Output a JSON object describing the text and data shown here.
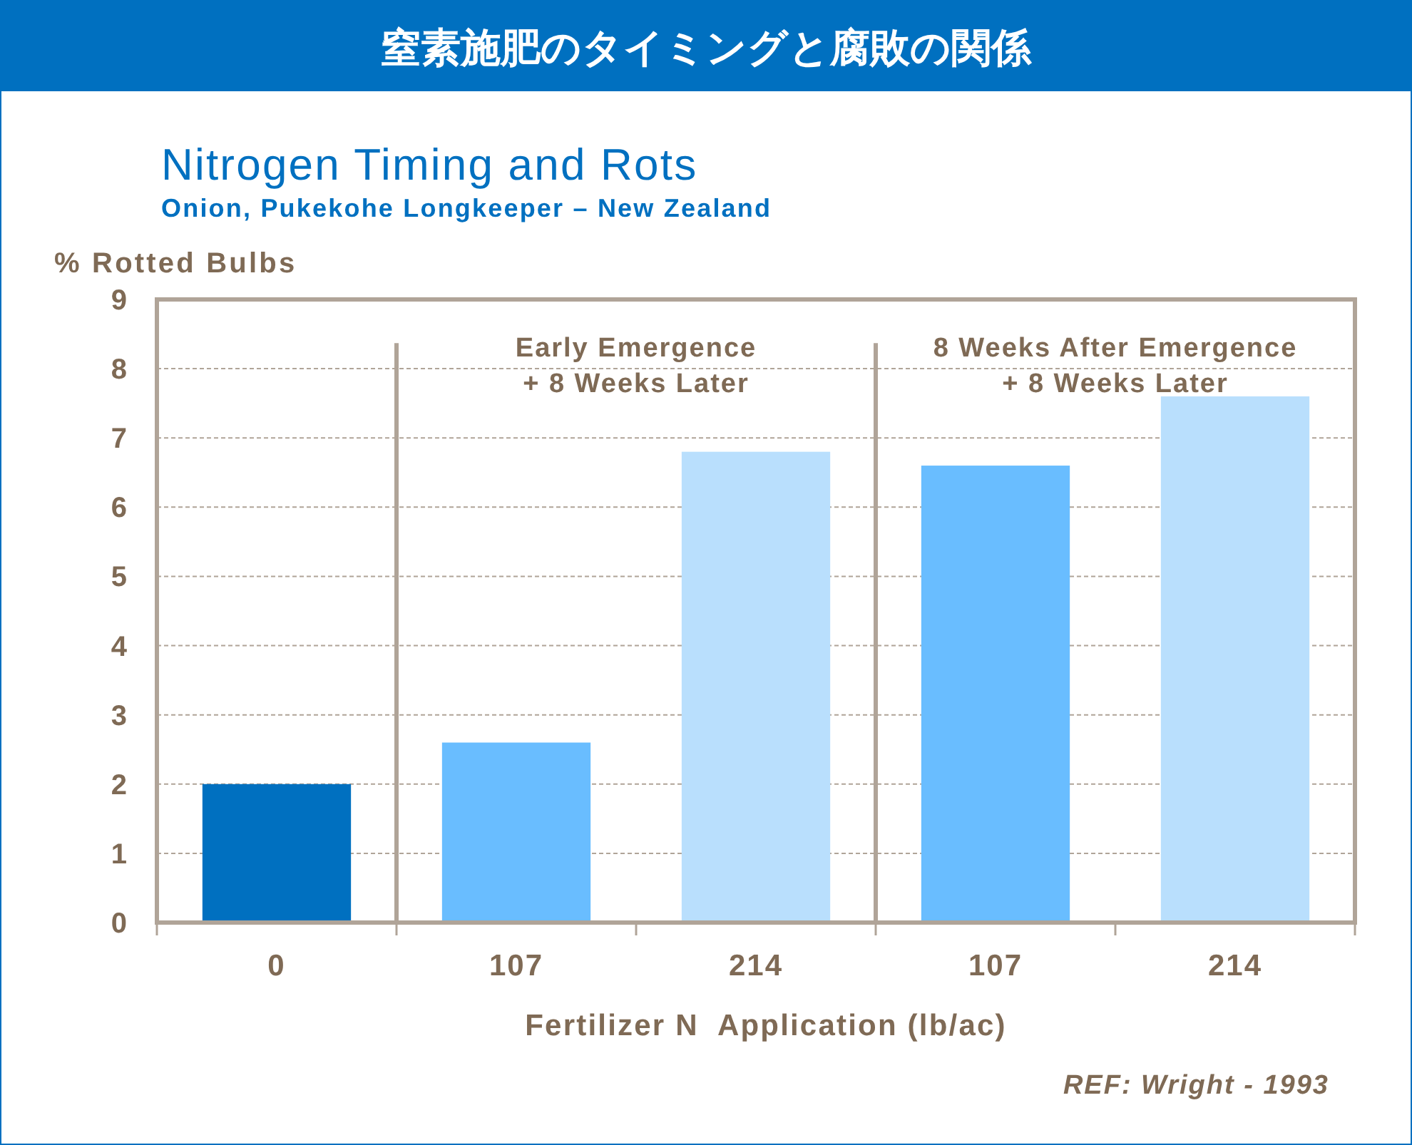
{
  "chart_data": {
    "type": "bar",
    "title": "窒素施肥のタイミングと腐敗の関係",
    "subtitle": "Nitrogen Timing and Rots",
    "annotations": [
      "Onion, Pukekohe Longkeeper – New Zealand",
      "REF: Wright - 1993",
      "Early Emergence\n+ 8 Weeks Later",
      "8 Weeks After Emergence\n+ 8 Weeks Later"
    ],
    "ylabel": "% Rotted Bulbs",
    "xlabel": "Fertilizer N  Application (lb/ac)",
    "categories": [
      "0",
      "107",
      "214",
      "107",
      "214"
    ],
    "values": [
      2.0,
      2.6,
      6.8,
      6.6,
      7.6
    ],
    "colors": [
      "#0070c0",
      "#69bdff",
      "#b9dffd",
      "#69bdff",
      "#b9dffd"
    ],
    "ylim": [
      0,
      9
    ],
    "yticks": [
      0,
      1,
      2,
      3,
      4,
      5,
      6,
      7,
      8,
      9
    ],
    "grid": "y"
  }
}
